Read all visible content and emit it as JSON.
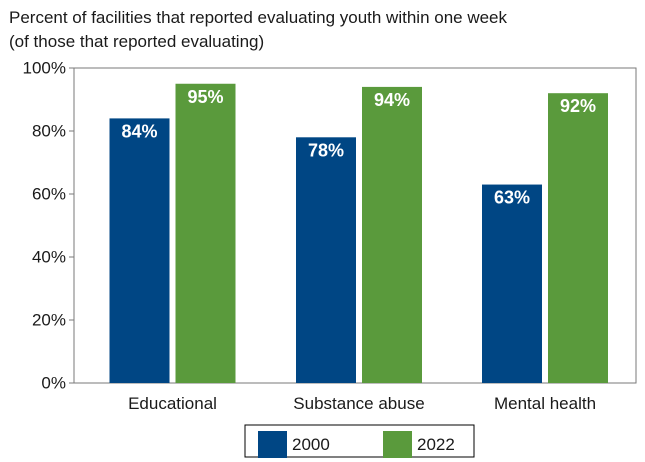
{
  "chart_data": {
    "type": "bar",
    "title_lines": [
      "Percent of facilities that reported evaluating youth within one week",
      "(of those that reported evaluating)"
    ],
    "categories": [
      "Educational",
      "Substance abuse",
      "Mental health"
    ],
    "series": [
      {
        "name": "2000",
        "values": [
          84,
          78,
          63
        ],
        "labels": [
          "84%",
          "78%",
          "63%"
        ],
        "color": "#004684"
      },
      {
        "name": "2022",
        "values": [
          95,
          94,
          92
        ],
        "labels": [
          "95%",
          "94%",
          "92%"
        ],
        "color": "#5a9a3c"
      }
    ],
    "ylim": [
      0,
      100
    ],
    "yticks": [
      0,
      20,
      40,
      60,
      80,
      100
    ],
    "ytick_labels": [
      "0%",
      "20%",
      "40%",
      "60%",
      "80%",
      "100%"
    ],
    "grid": false,
    "legend_position": "bottom-center"
  }
}
